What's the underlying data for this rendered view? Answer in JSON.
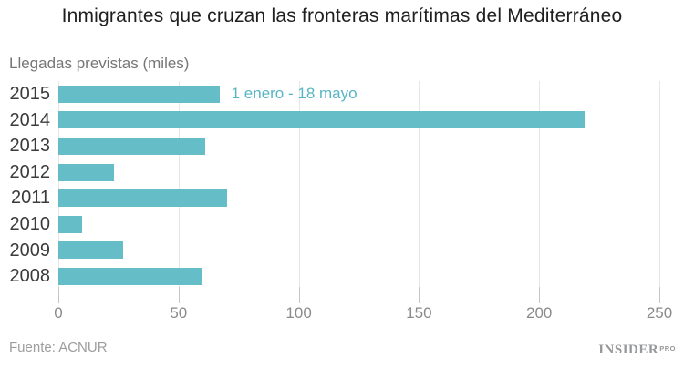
{
  "title": "Inmigrantes que cruzan las fronteras marítimas del Mediterráneo",
  "subtitle": "Llegadas previstas (miles)",
  "annotation_label": "1 enero - 18 mayo",
  "source": "Fuente: ACNUR",
  "logo": {
    "main": "INSIDER",
    "sub": "PRO"
  },
  "colors": {
    "bar": "#65bec7",
    "accent_text": "#58b5c4",
    "grid": "#e6e6e6",
    "tick": "#c6c6c6",
    "title": "#1f1f1f",
    "year_label": "#3b3b3b",
    "axis_label": "#8a8a8a",
    "subtitle": "#767676",
    "source": "#9d9d9d",
    "logo": "#97989a"
  },
  "chart_data": {
    "type": "bar",
    "orientation": "horizontal",
    "title": "Inmigrantes que cruzan las fronteras marítimas del Mediterráneo",
    "xlabel": "",
    "ylabel": "Llegadas previstas (miles)",
    "categories": [
      "2015",
      "2014",
      "2013",
      "2012",
      "2011",
      "2010",
      "2009",
      "2008"
    ],
    "values": [
      67,
      219,
      61,
      23,
      70,
      10,
      27,
      60
    ],
    "xlim": [
      0,
      250
    ],
    "xticks": [
      0,
      50,
      100,
      150,
      200,
      250
    ],
    "grid": true,
    "legend": false,
    "annotation": {
      "text": "1 enero - 18 mayo",
      "category": "2015"
    },
    "units": "miles de personas"
  }
}
